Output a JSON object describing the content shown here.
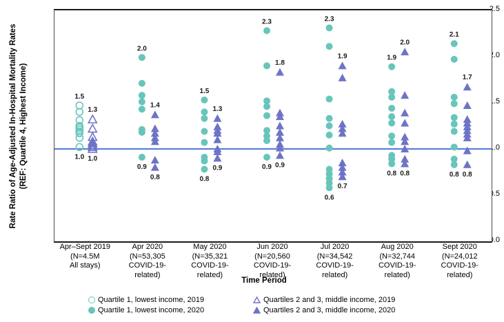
{
  "chart_data": {
    "type": "scatter",
    "ylabel_line1": "Rate Ratio of Age-Adjusted In-Hospital Mortality Rates",
    "ylabel_line2": "(REF: Quartile 4, Highest Income)",
    "xlabel": "Time Period",
    "ylim": [
      0.0,
      2.5
    ],
    "yticks": [
      2.5,
      2.0,
      1.5,
      1.0,
      0.5,
      0.0
    ],
    "reference_line": 1.0,
    "colors": {
      "quartile1_teal": "#68C5BB",
      "quartiles23_purple": "#6E74C5",
      "reference_line_blue": "#5C80D8"
    },
    "groups": [
      {
        "label_lines": [
          "Apr–Sept 2019",
          "(N=4.5M",
          "All stays)"
        ],
        "quartile1": {
          "year": "2019",
          "open": true,
          "max_label": "1.5",
          "min_label": "1.0",
          "values": [
            1.47,
            1.4,
            1.31,
            1.25,
            1.23,
            1.21,
            1.19,
            1.17,
            1.12,
            1.02
          ]
        },
        "quartiles23": {
          "year": "2019",
          "open": true,
          "max_label": "1.3",
          "min_label": "1.0",
          "values": [
            1.32,
            1.22,
            1.13,
            1.08,
            1.06,
            1.04,
            1.02,
            1.0
          ]
        }
      },
      {
        "label_lines": [
          "Apr 2020",
          "(N=53,305",
          "COVID-19-related)"
        ],
        "quartile1": {
          "year": "2020",
          "open": false,
          "max_label": "2.0",
          "min_label": "0.9",
          "values": [
            1.99,
            1.71,
            1.58,
            1.51,
            1.43,
            1.21,
            1.18,
            0.91
          ]
        },
        "quartiles23": {
          "year": "2020",
          "open": false,
          "max_label": "1.4",
          "min_label": "0.8",
          "values": [
            1.37,
            1.22,
            1.17,
            1.12,
            1.08,
            0.88,
            0.8
          ]
        }
      },
      {
        "label_lines": [
          "May 2020",
          "(N=35,321",
          "COVID-19-related)"
        ],
        "quartile1": {
          "year": "2020",
          "open": false,
          "max_label": "1.5",
          "min_label": "0.8",
          "values": [
            1.53,
            1.4,
            1.33,
            1.19,
            1.07,
            0.91,
            0.87,
            0.78
          ]
        },
        "quartiles23": {
          "year": "2020",
          "open": false,
          "max_label": "1.3",
          "min_label": "0.9",
          "values": [
            1.33,
            1.24,
            1.2,
            1.17,
            1.1,
            1.0,
            0.97,
            0.9
          ]
        }
      },
      {
        "label_lines": [
          "Jun 2020",
          "(N=20,560",
          "COVID-19-related)"
        ],
        "quartile1": {
          "year": "2020",
          "open": false,
          "max_label": "2.3",
          "min_label": "0.9",
          "values": [
            2.28,
            1.9,
            1.52,
            1.46,
            1.36,
            1.2,
            1.14,
            1.09,
            0.91
          ]
        },
        "quartiles23": {
          "year": "2020",
          "open": false,
          "max_label": "1.8",
          "min_label": "0.9",
          "values": [
            1.83,
            1.39,
            1.35,
            1.25,
            1.18,
            1.12,
            1.05,
            1.01,
            0.93
          ]
        }
      },
      {
        "label_lines": [
          "Jul 2020",
          "(N=34,542",
          "COVID-19-related)"
        ],
        "quartile1": {
          "year": "2020",
          "open": false,
          "max_label": "2.3",
          "min_label": "0.6",
          "values": [
            2.31,
            2.11,
            1.54,
            1.33,
            1.25,
            1.15,
            1.01,
            0.78,
            0.73,
            0.68,
            0.63,
            0.58
          ]
        },
        "quartiles23": {
          "year": "2020",
          "open": false,
          "max_label": "1.9",
          "min_label": "0.7",
          "values": [
            1.9,
            1.77,
            1.27,
            1.22,
            1.17,
            0.85,
            0.8,
            0.75,
            0.7
          ]
        }
      },
      {
        "label_lines": [
          "Aug 2020",
          "(N=32,744",
          "COVID-19-related)"
        ],
        "quartile1": {
          "year": "2020",
          "open": false,
          "max_label": "1.9",
          "min_label": "0.8",
          "values": [
            1.89,
            1.62,
            1.56,
            1.44,
            1.35,
            1.28,
            1.14,
            1.07,
            0.93,
            0.89,
            0.84
          ]
        },
        "quartiles23": {
          "year": "2020",
          "open": false,
          "max_label": "2.0",
          "min_label": "0.8",
          "values": [
            2.05,
            1.58,
            1.39,
            1.28,
            1.13,
            1.08,
            1.0,
            0.89,
            0.84
          ]
        }
      },
      {
        "label_lines": [
          "Sept 2020",
          "(N=24,012",
          "COVID-19-related)"
        ],
        "quartile1": {
          "year": "2020",
          "open": false,
          "max_label": "2.1",
          "min_label": "0.8",
          "values": [
            2.14,
            1.97,
            1.56,
            1.49,
            1.34,
            1.27,
            1.19,
            1.02,
            0.89,
            0.83
          ]
        },
        "quartiles23": {
          "year": "2020",
          "open": false,
          "max_label": "1.7",
          "min_label": "0.8",
          "values": [
            1.67,
            1.47,
            1.32,
            1.28,
            1.24,
            1.2,
            1.16,
            1.12,
            0.98,
            0.83
          ]
        }
      }
    ],
    "legend_columns": [
      [
        {
          "marker": "circle-open",
          "label": "Quartile 1, lowest income, 2019"
        },
        {
          "marker": "circle-filled",
          "label": "Quartile 1, lowest income, 2020"
        }
      ],
      [
        {
          "marker": "triangle-open",
          "label": "Quartiles 2 and 3, middle income, 2019"
        },
        {
          "marker": "triangle-filled",
          "label": "Quartiles 2 and 3, middle income, 2020"
        }
      ]
    ]
  }
}
